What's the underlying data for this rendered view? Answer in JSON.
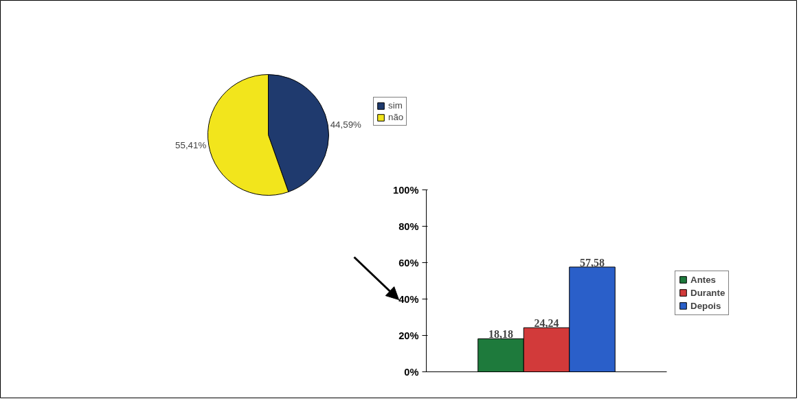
{
  "chart_data": [
    {
      "type": "pie",
      "categories": [
        "sim",
        "não"
      ],
      "values": [
        44.59,
        55.41
      ],
      "colors": [
        "#1f3a6e",
        "#f2e51c"
      ],
      "value_labels": [
        "44,59%",
        "55,41%"
      ],
      "legend": "top right"
    },
    {
      "type": "bar",
      "categories": [
        null
      ],
      "series": [
        {
          "name": "Antes",
          "color": "#1e7a3c",
          "values": [
            18.18
          ],
          "value_labels": [
            "18,18"
          ]
        },
        {
          "name": "Durante",
          "color": "#d23a3a",
          "values": [
            24.24
          ],
          "value_labels": [
            "24,24"
          ]
        },
        {
          "name": "Depois",
          "color": "#2a5fc9",
          "values": [
            57.58
          ],
          "value_labels": [
            "57,58"
          ]
        }
      ],
      "ylim": [
        0,
        100
      ],
      "yticks": [
        {
          "value": 0,
          "label": "0%"
        },
        {
          "value": 20,
          "label": "20%"
        },
        {
          "value": 40,
          "label": "40%"
        },
        {
          "value": 60,
          "label": "60%"
        },
        {
          "value": 80,
          "label": "80%"
        },
        {
          "value": 100,
          "label": "100%"
        }
      ],
      "legend": "right",
      "grid": false
    }
  ]
}
